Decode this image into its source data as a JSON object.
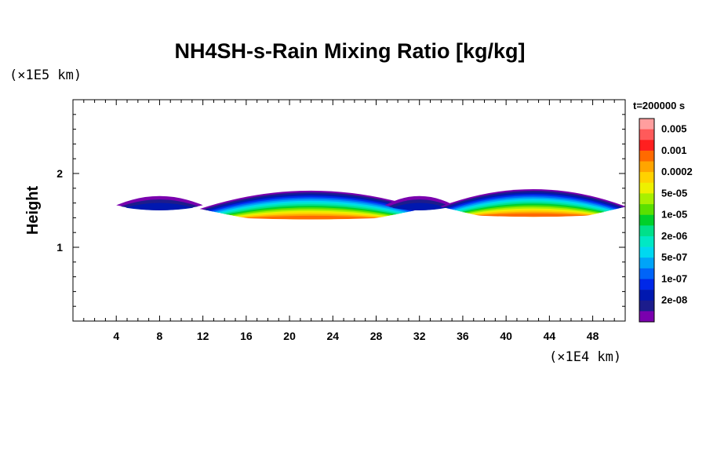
{
  "chart_data": {
    "type": "heatmap",
    "title": "NH4SH-s-Rain Mixing Ratio [kg/kg]",
    "ylabel": "Height",
    "y_unit": "(×1E5 km)",
    "x_unit": "(×1E4 km)",
    "time_label": "t=200000 s",
    "x_ticks": [
      4,
      8,
      12,
      16,
      20,
      24,
      28,
      32,
      36,
      40,
      44,
      48
    ],
    "y_ticks": [
      1,
      2
    ],
    "xlim": [
      0,
      51
    ],
    "ylim": [
      0,
      3
    ],
    "scale": "log",
    "colorbar": {
      "labels": [
        "0.005",
        "0.001",
        "0.0002",
        "5e-05",
        "1e-05",
        "2e-06",
        "5e-07",
        "1e-07",
        "2e-08"
      ],
      "colors": [
        "#ff9e9e",
        "#ff5a5a",
        "#ff1f1f",
        "#ff6a00",
        "#ffa500",
        "#ffd200",
        "#eef000",
        "#a8f000",
        "#5ae000",
        "#00d02a",
        "#00e08a",
        "#00e8c4",
        "#00d8f0",
        "#00a4f8",
        "#0064f8",
        "#0028e8",
        "#0018b0",
        "#1c1c8c",
        "#7a00ae"
      ]
    },
    "clouds": [
      {
        "x_center": 8.0,
        "x_half_width": 4.0,
        "y_center": 1.57,
        "y_half_height": 0.13,
        "peak_level": 2
      },
      {
        "x_center": 22.0,
        "x_half_width": 10.3,
        "y_center": 1.52,
        "y_half_height": 0.26,
        "peak_level": 15
      },
      {
        "x_center": 32.0,
        "x_half_width": 3.2,
        "y_center": 1.57,
        "y_half_height": 0.13,
        "peak_level": 2
      },
      {
        "x_center": 42.5,
        "x_half_width": 8.6,
        "y_center": 1.55,
        "y_half_height": 0.25,
        "peak_level": 15
      }
    ]
  }
}
